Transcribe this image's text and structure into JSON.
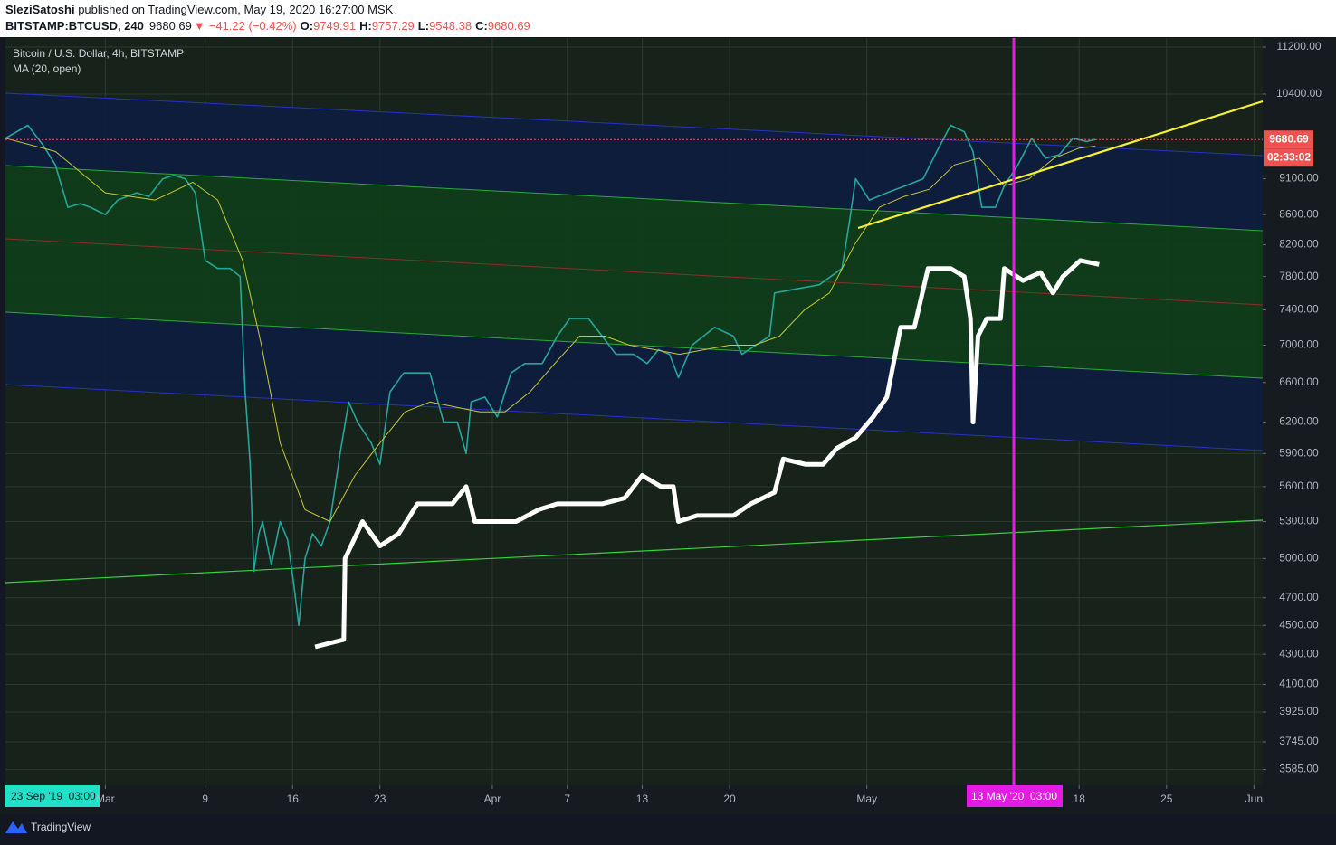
{
  "header": {
    "author": "SleziSatoshi",
    "published": " published on TradingView.com, May 19, 2020 16:27:00 MSK",
    "symbol": "BITSTAMP:BTCUSD, 240",
    "last": "9680.69",
    "arrow": "▼",
    "change": "−41.22 (−0.42%)",
    "ohlc": [
      {
        "k": "O:",
        "v": "9749.91"
      },
      {
        "k": "H:",
        "v": "9757.29"
      },
      {
        "k": "L:",
        "v": "9548.38"
      },
      {
        "k": "C:",
        "v": "9680.69"
      }
    ]
  },
  "footer": {
    "brand": "TradingView"
  },
  "chart_data": {
    "type": "line",
    "log_scale": true,
    "grid": true,
    "ylim": [
      3497,
      11361
    ],
    "yticks": [
      {
        "value": 11200,
        "label": "11200.00"
      },
      {
        "value": 10400,
        "label": "10400.00"
      },
      {
        "value": 9100,
        "label": "9100.00"
      },
      {
        "value": 8600,
        "label": "8600.00"
      },
      {
        "value": 8200,
        "label": "8200.00"
      },
      {
        "value": 7800,
        "label": "7800.00"
      },
      {
        "value": 7400,
        "label": "7400.00"
      },
      {
        "value": 7000,
        "label": "7000.00"
      },
      {
        "value": 6600,
        "label": "6600.00"
      },
      {
        "value": 6200,
        "label": "6200.00"
      },
      {
        "value": 5900,
        "label": "5900.00"
      },
      {
        "value": 5600,
        "label": "5600.00"
      },
      {
        "value": 5300,
        "label": "5300.00"
      },
      {
        "value": 5000,
        "label": "5000.00"
      },
      {
        "value": 4700,
        "label": "4700.00"
      },
      {
        "value": 4500,
        "label": "4500.00"
      },
      {
        "value": 4300,
        "label": "4300.00"
      },
      {
        "value": 4100,
        "label": "4100.00"
      },
      {
        "value": 3925,
        "label": "3925.00"
      },
      {
        "value": 3745,
        "label": "3745.00"
      },
      {
        "value": 3585,
        "label": "3585.00"
      }
    ],
    "xlim": [
      -8,
      92.7
    ],
    "xticks": [
      {
        "value": 0,
        "label": "Mar"
      },
      {
        "value": 8,
        "label": "9"
      },
      {
        "value": 15,
        "label": "16"
      },
      {
        "value": 22,
        "label": "23"
      },
      {
        "value": 31,
        "label": "Apr"
      },
      {
        "value": 37,
        "label": "7"
      },
      {
        "value": 43,
        "label": "13"
      },
      {
        "value": 50,
        "label": "20"
      },
      {
        "value": 61,
        "label": "May"
      },
      {
        "value": 78,
        "label": "18"
      },
      {
        "value": 85,
        "label": "25"
      },
      {
        "value": 92,
        "label": "Jun"
      }
    ],
    "series": [
      {
        "name": "Bitcoin / U.S. Dollar, 4h, BITSTAMP",
        "color": "#26a69a",
        "width": 1.6,
        "x": [
          -8,
          -6.2,
          -5,
          -4,
          -3,
          -2,
          -1.2,
          0,
          1,
          2.5,
          3.5,
          4.6,
          5.5,
          6.4,
          7.2,
          8,
          9,
          10,
          10.8,
          11.2,
          11.6,
          11.9,
          12.3,
          12.6,
          13.3,
          14,
          14.6,
          15.1,
          15.5,
          16,
          16.6,
          17.3,
          18,
          18.8,
          19.5,
          20.2,
          21.3,
          22,
          22.8,
          23.9,
          25,
          26,
          27.1,
          28.2,
          28.9,
          29.3,
          30.4,
          31.4,
          32.5,
          33.6,
          35,
          36.2,
          37.2,
          38.7,
          39.8,
          40.9,
          42.3,
          43.4,
          44.3,
          45.2,
          45.9,
          47,
          48.8,
          50.3,
          51,
          52.1,
          53.2,
          53.6,
          55.4,
          57.2,
          59,
          59.6,
          60.1,
          61.2,
          62.6,
          64.1,
          65.5,
          66.6,
          67.7,
          68.8,
          69.5,
          70.2,
          71.3,
          72,
          73.1,
          74.2,
          75.3,
          76.4,
          77.5,
          78.6,
          79.3
        ],
        "values": [
          9700,
          9900,
          9600,
          9300,
          8700,
          8750,
          8700,
          8600,
          8800,
          8900,
          8850,
          9100,
          9150,
          9100,
          8900,
          8000,
          7900,
          7900,
          7800,
          6500,
          5800,
          4900,
          5200,
          5300,
          4950,
          5300,
          5150,
          4800,
          4500,
          5000,
          5200,
          5100,
          5300,
          5900,
          6400,
          6200,
          6000,
          5800,
          6500,
          6700,
          6700,
          6700,
          6200,
          6200,
          5900,
          6400,
          6450,
          6250,
          6700,
          6800,
          6800,
          7100,
          7300,
          7300,
          7100,
          6900,
          6900,
          6800,
          6950,
          6900,
          6650,
          7000,
          7200,
          7100,
          6900,
          7000,
          7100,
          7600,
          7650,
          7700,
          7900,
          8500,
          9100,
          8800,
          8900,
          9000,
          9100,
          9500,
          9900,
          9800,
          9500,
          8700,
          8700,
          9000,
          9300,
          9700,
          9400,
          9450,
          9700,
          9650,
          9680.69
        ]
      },
      {
        "name": "MA (20, open)",
        "color": "#c8c832",
        "width": 1,
        "x": [
          -8,
          -4,
          0,
          4,
          7,
          9,
          11,
          12.5,
          14,
          16,
          18,
          20,
          22,
          24,
          26,
          28,
          30,
          32,
          34,
          36,
          38,
          40,
          42,
          44,
          46,
          48,
          50,
          52,
          54,
          56,
          58,
          60,
          62,
          64,
          66,
          68,
          70,
          72,
          74,
          76,
          78,
          79.3
        ],
        "values": [
          9700,
          9500,
          8900,
          8800,
          9050,
          8800,
          8000,
          7000,
          6000,
          5400,
          5300,
          5700,
          6000,
          6300,
          6400,
          6350,
          6300,
          6300,
          6500,
          6800,
          7100,
          7100,
          7000,
          6950,
          6900,
          6950,
          7000,
          7000,
          7100,
          7400,
          7600,
          8200,
          8700,
          8850,
          8950,
          9300,
          9400,
          9000,
          9100,
          9400,
          9550,
          9580
        ]
      },
      {
        "color": "#ffffff",
        "width": 5,
        "x": [
          16.8,
          19.1,
          19.2,
          20.6,
          22,
          23.5,
          25,
          26.4,
          27.8,
          28.9,
          29.6,
          31.1,
          32.9,
          34.7,
          36.2,
          38,
          39.8,
          41.6,
          43,
          44.5,
          45.5,
          45.9,
          47.4,
          49.2,
          50.3,
          51.7,
          53.6,
          54.3,
          56.1,
          57.5,
          58.6,
          60.1,
          61.5,
          62.6,
          63.7,
          64.8,
          65.9,
          67.7,
          68.8,
          69.3,
          69.5,
          69.9,
          70.6,
          71.7,
          72,
          73.5,
          74.9,
          75.9,
          76.7,
          78.1,
          79.6
        ],
        "values": [
          4350,
          4400,
          5000,
          5300,
          5100,
          5200,
          5450,
          5450,
          5450,
          5600,
          5300,
          5300,
          5300,
          5400,
          5450,
          5450,
          5450,
          5500,
          5700,
          5600,
          5600,
          5300,
          5350,
          5350,
          5350,
          5450,
          5550,
          5850,
          5800,
          5800,
          5950,
          6050,
          6250,
          6450,
          7200,
          7200,
          7900,
          7900,
          7800,
          7300,
          6200,
          7100,
          7300,
          7300,
          7900,
          7750,
          7850,
          7600,
          7800,
          8000,
          7950
        ]
      }
    ],
    "last_price": 9680.69,
    "countdown": "02:33:02",
    "crosshair_labels": [
      "23 Sep '19  03:00",
      "13 May '20  03:00"
    ]
  }
}
